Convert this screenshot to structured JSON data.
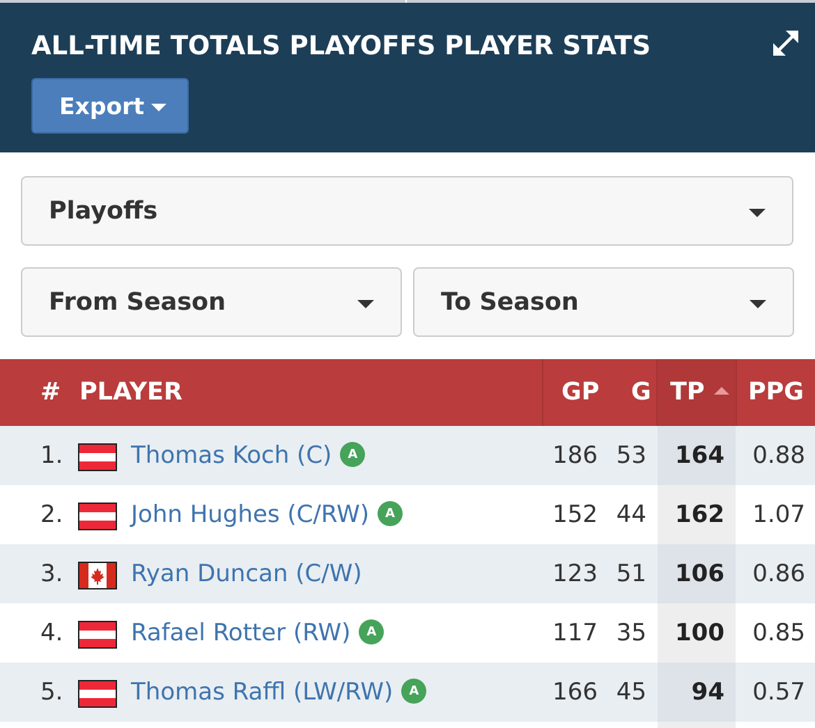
{
  "header": {
    "title": "ALL-TIME TOTALS PLAYOFFS PLAYER STATS",
    "export_label": "Export"
  },
  "filters": {
    "league": "Playoffs",
    "from_season": "From Season",
    "to_season": "To Season"
  },
  "table": {
    "columns": {
      "num": "#",
      "player": "PLAYER",
      "gp": "GP",
      "g": "G",
      "tp": "TP",
      "ppg": "PPG"
    },
    "sorted_column": "TP",
    "rows": [
      {
        "rank": "1.",
        "flag": "austria",
        "name": "Thomas Koch (C)",
        "badge": "A",
        "gp": "186",
        "g": "53",
        "tp": "164",
        "ppg": "0.88"
      },
      {
        "rank": "2.",
        "flag": "austria",
        "name": "John Hughes (C/RW)",
        "badge": "A",
        "gp": "152",
        "g": "44",
        "tp": "162",
        "ppg": "1.07"
      },
      {
        "rank": "3.",
        "flag": "canada",
        "name": "Ryan Duncan (C/W)",
        "badge": "",
        "gp": "123",
        "g": "51",
        "tp": "106",
        "ppg": "0.86"
      },
      {
        "rank": "4.",
        "flag": "austria",
        "name": "Rafael Rotter (RW)",
        "badge": "A",
        "gp": "117",
        "g": "35",
        "tp": "100",
        "ppg": "0.85"
      },
      {
        "rank": "5.",
        "flag": "austria",
        "name": "Thomas Raffl (LW/RW)",
        "badge": "A",
        "gp": "166",
        "g": "45",
        "tp": "94",
        "ppg": "0.57"
      }
    ]
  },
  "colors": {
    "header_bg": "#1d3e57",
    "export_bg": "#4b7ebb",
    "table_header_bg": "#ba3c3c",
    "link": "#3e74ae",
    "badge": "#46a35a"
  }
}
